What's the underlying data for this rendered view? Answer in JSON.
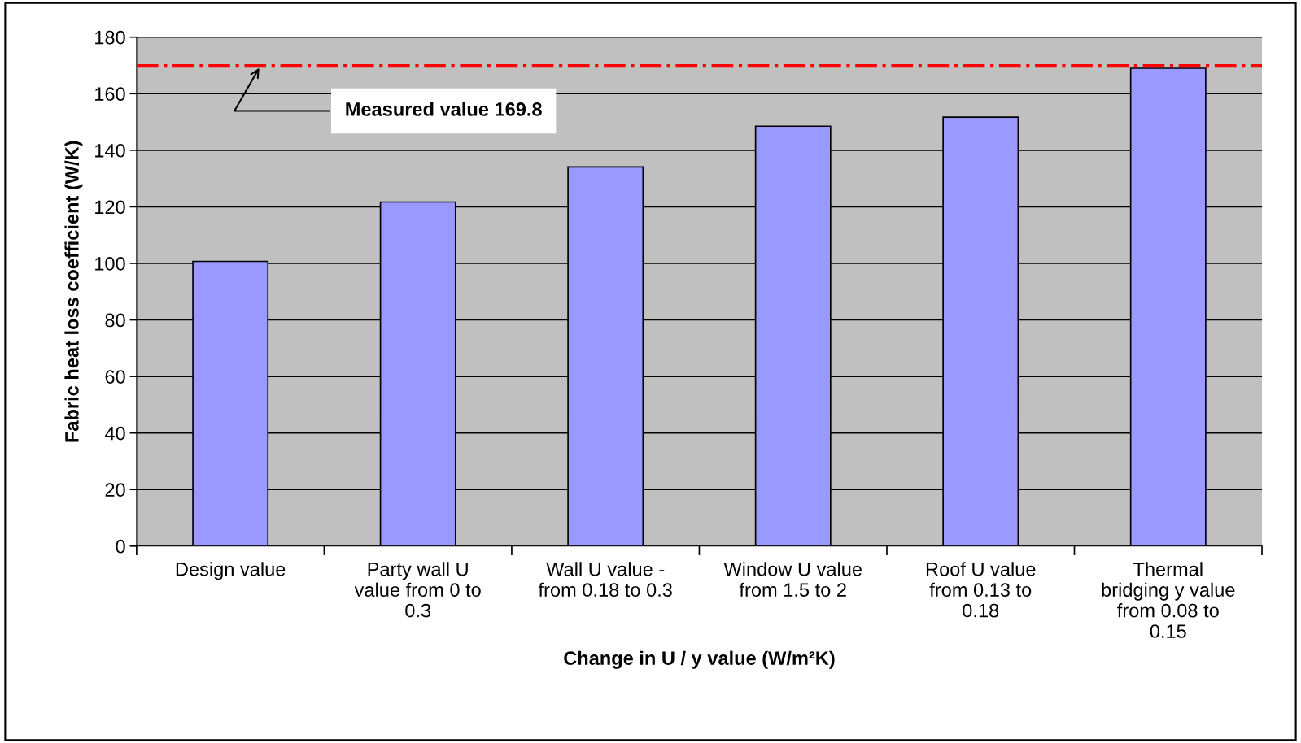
{
  "chart_data": {
    "type": "bar",
    "categories": [
      "Design value",
      "Party wall U\nvalue from 0 to\n0.3",
      "Wall U value -\nfrom 0.18 to 0.3",
      "Window U value\nfrom 1.5 to 2",
      "Roof U value\nfrom 0.13 to\n0.18",
      "Thermal\nbridging y value\nfrom 0.08 to\n0.15"
    ],
    "values": [
      100.7,
      121.7,
      134.1,
      148.5,
      151.7,
      169.0
    ],
    "color": "#9999ff",
    "xlabel": "Change in U / y value (W/m²K)",
    "ylabel": "Fabric heat loss coefficient (W/K)",
    "ylim": [
      0,
      180
    ],
    "yticks": [
      0,
      20,
      40,
      60,
      80,
      100,
      120,
      140,
      160,
      180
    ],
    "grid": "y",
    "legend": false,
    "ref_lines": [
      {
        "axis": "y",
        "value": 169.8,
        "label": "Measured value 169.8",
        "color": "#ff0000",
        "line_style": "dashdot"
      }
    ]
  }
}
